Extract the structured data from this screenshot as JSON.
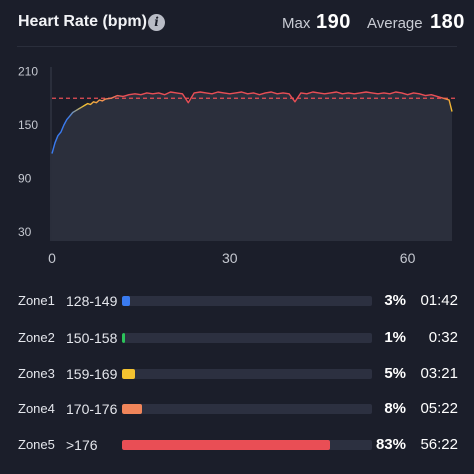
{
  "header": {
    "title": "Heart Rate (bpm)",
    "info_icon": "info-icon",
    "max_label": "Max",
    "max_value": "190",
    "avg_label": "Average",
    "avg_value": "180"
  },
  "chart_data": {
    "type": "line",
    "title": "",
    "xlabel": "",
    "ylabel": "",
    "xlim": [
      0,
      68
    ],
    "ylim": [
      20,
      215
    ],
    "x_ticks": [
      0,
      30,
      60
    ],
    "y_ticks": [
      30,
      90,
      150,
      210
    ],
    "average_line": 180,
    "grid": false,
    "series": [
      {
        "x": [
          0,
          0.5,
          1,
          1.5,
          2,
          2.5,
          3,
          3.5,
          4,
          4.5,
          5,
          5.5,
          6,
          6.5,
          7,
          7.5,
          8,
          8.5,
          9,
          10,
          11,
          12,
          13,
          14,
          15,
          16,
          17,
          18,
          19,
          20,
          21,
          22,
          23,
          24,
          25,
          26,
          27,
          28,
          29,
          30,
          31,
          32,
          33,
          34,
          35,
          36,
          37,
          38,
          39,
          40,
          41,
          42,
          43,
          44,
          45,
          46,
          47,
          48,
          49,
          50,
          51,
          52,
          53,
          54,
          55,
          56,
          57,
          58,
          59,
          60,
          61,
          62,
          63,
          64,
          65,
          66,
          67,
          67.5
        ],
        "y": [
          118,
          130,
          138,
          142,
          150,
          156,
          160,
          164,
          166,
          168,
          170,
          172,
          174,
          173,
          176,
          175,
          178,
          177,
          179,
          180,
          183,
          182,
          184,
          185,
          184,
          186,
          185,
          186,
          184,
          187,
          186,
          185,
          175,
          186,
          187,
          186,
          185,
          187,
          186,
          185,
          186,
          187,
          185,
          186,
          184,
          186,
          187,
          185,
          186,
          185,
          176,
          186,
          185,
          187,
          186,
          185,
          186,
          187,
          185,
          186,
          185,
          186,
          187,
          186,
          185,
          186,
          185,
          187,
          186,
          184,
          186,
          185,
          183,
          184,
          182,
          180,
          178,
          165
        ]
      }
    ],
    "colors": {
      "zone1": "#3a7bf0",
      "zone2": "#2bc45a",
      "zone3": "#f3c230",
      "zone4": "#f0855a",
      "zone5": "#e94e55",
      "area_fill": "#2b2f3c",
      "average_line": "#e94e55"
    }
  },
  "zones": [
    {
      "name": "Zone1",
      "range": "128-149",
      "percent": "3%",
      "time": "01:42",
      "fill": 0.03,
      "color": "#3a7bf0"
    },
    {
      "name": "Zone2",
      "range": "150-158",
      "percent": "1%",
      "time": "0:32",
      "fill": 0.01,
      "color": "#2bc45a"
    },
    {
      "name": "Zone3",
      "range": "159-169",
      "percent": "5%",
      "time": "03:21",
      "fill": 0.05,
      "color": "#f3c230"
    },
    {
      "name": "Zone4",
      "range": "170-176",
      "percent": "8%",
      "time": "05:22",
      "fill": 0.08,
      "color": "#f0855a"
    },
    {
      "name": "Zone5",
      "range": ">176",
      "percent": "83%",
      "time": "56:22",
      "fill": 0.83,
      "color": "#e94e55"
    }
  ]
}
